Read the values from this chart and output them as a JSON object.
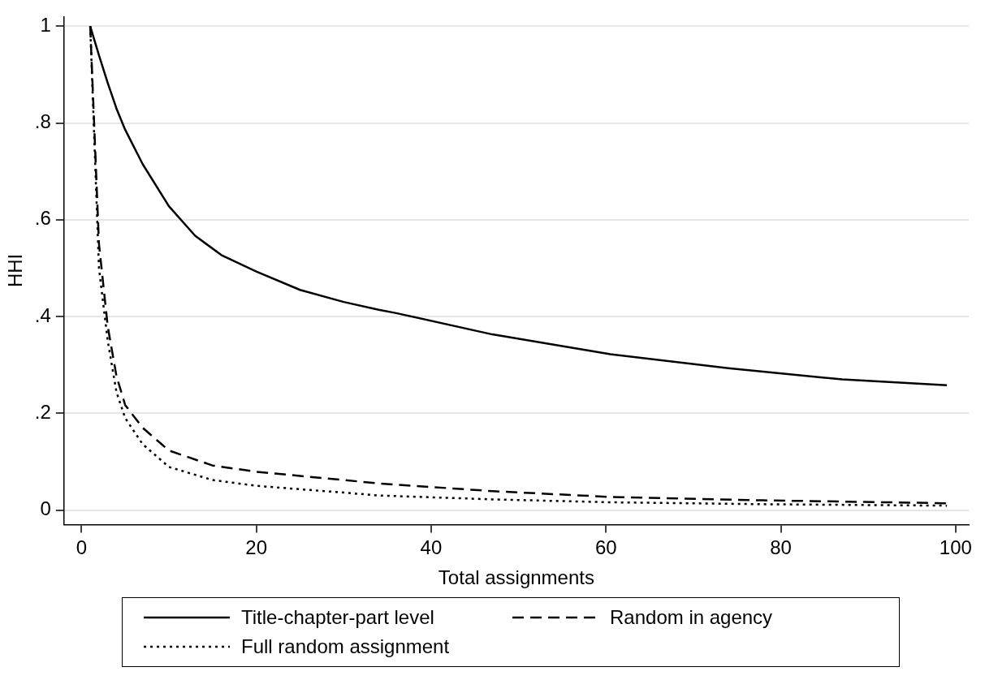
{
  "chart_data": {
    "type": "line",
    "xlabel": "Total assignments",
    "ylabel": "HHI",
    "xlim": [
      -2,
      101.5
    ],
    "xticks": [
      0,
      20,
      40,
      60,
      80,
      100
    ],
    "ylim": [
      -0.03,
      1.02
    ],
    "yticks": [
      {
        "value": 0,
        "label": "0"
      },
      {
        "value": 0.2,
        "label": ".2"
      },
      {
        "value": 0.4,
        "label": ".4"
      },
      {
        "value": 0.6,
        "label": ".6"
      },
      {
        "value": 0.8,
        "label": ".8"
      },
      {
        "value": 1,
        "label": "1"
      }
    ],
    "grid": "y",
    "legend": "bottom",
    "marker": "none",
    "series": [
      {
        "name": "Title-chapter-part level",
        "color": "#000000",
        "line_style": "solid",
        "x": [
          1,
          2,
          3,
          4,
          5,
          7,
          10,
          13,
          16,
          20,
          25,
          30,
          34,
          36,
          47,
          60.5,
          74,
          87,
          99
        ],
        "values": [
          1,
          0.94,
          0.883,
          0.83,
          0.786,
          0.715,
          0.628,
          0.567,
          0.527,
          0.493,
          0.455,
          0.43,
          0.414,
          0.407,
          0.363,
          0.322,
          0.293,
          0.27,
          0.258
        ]
      },
      {
        "name": "Random in agency",
        "color": "#000000",
        "line_style": "dashed",
        "x": [
          1,
          2,
          3,
          4,
          5,
          7,
          10,
          15,
          20,
          30,
          34,
          47,
          60.5,
          78,
          99
        ],
        "values": [
          1,
          0.55,
          0.38,
          0.277,
          0.217,
          0.17,
          0.123,
          0.092,
          0.079,
          0.062,
          0.055,
          0.039,
          0.027,
          0.02,
          0.014
        ]
      },
      {
        "name": "Full random assignment",
        "color": "#000000",
        "line_style": "dotted",
        "x": [
          1,
          2,
          3,
          4,
          5,
          7,
          10,
          15,
          20,
          30,
          34,
          47,
          60.5,
          78,
          99
        ],
        "values": [
          1,
          0.5,
          0.35,
          0.244,
          0.19,
          0.136,
          0.089,
          0.062,
          0.05,
          0.036,
          0.03,
          0.022,
          0.016,
          0.012,
          0.009
        ]
      }
    ]
  }
}
